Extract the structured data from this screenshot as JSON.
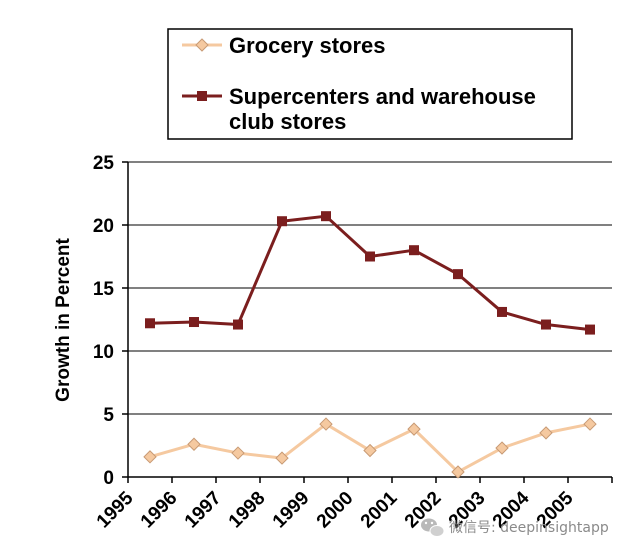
{
  "chart_data": {
    "type": "line",
    "title": "",
    "xlabel": "",
    "ylabel": "Growth in Percent",
    "categories": [
      "1995",
      "1996",
      "1997",
      "1998",
      "1999",
      "2000",
      "2001",
      "2002",
      "2003",
      "2004",
      "2005"
    ],
    "ylim": [
      0,
      25
    ],
    "yticks": [
      0,
      5,
      10,
      15,
      20,
      25
    ],
    "grid": true,
    "legend_position": "top",
    "series": [
      {
        "name": "Grocery stores",
        "legend_lines": [
          "Grocery stores"
        ],
        "marker": "diamond",
        "color": "#F5C9A0",
        "marker_edge": "#C89A74",
        "values": [
          1.6,
          2.6,
          1.9,
          1.5,
          4.2,
          2.1,
          3.8,
          0.4,
          2.3,
          3.5,
          4.2
        ]
      },
      {
        "name": "Supercenters and warehouse club stores",
        "legend_lines": [
          "Supercenters and warehouse",
          "club stores"
        ],
        "marker": "square",
        "color": "#7B1E1E",
        "marker_edge": "#7B1E1E",
        "values": [
          12.2,
          12.3,
          12.1,
          20.3,
          20.7,
          17.5,
          18.0,
          16.1,
          13.1,
          12.1,
          11.7
        ]
      }
    ]
  },
  "watermark": {
    "icon": "wechat-icon",
    "text": "微信号: deepinsightapp"
  }
}
